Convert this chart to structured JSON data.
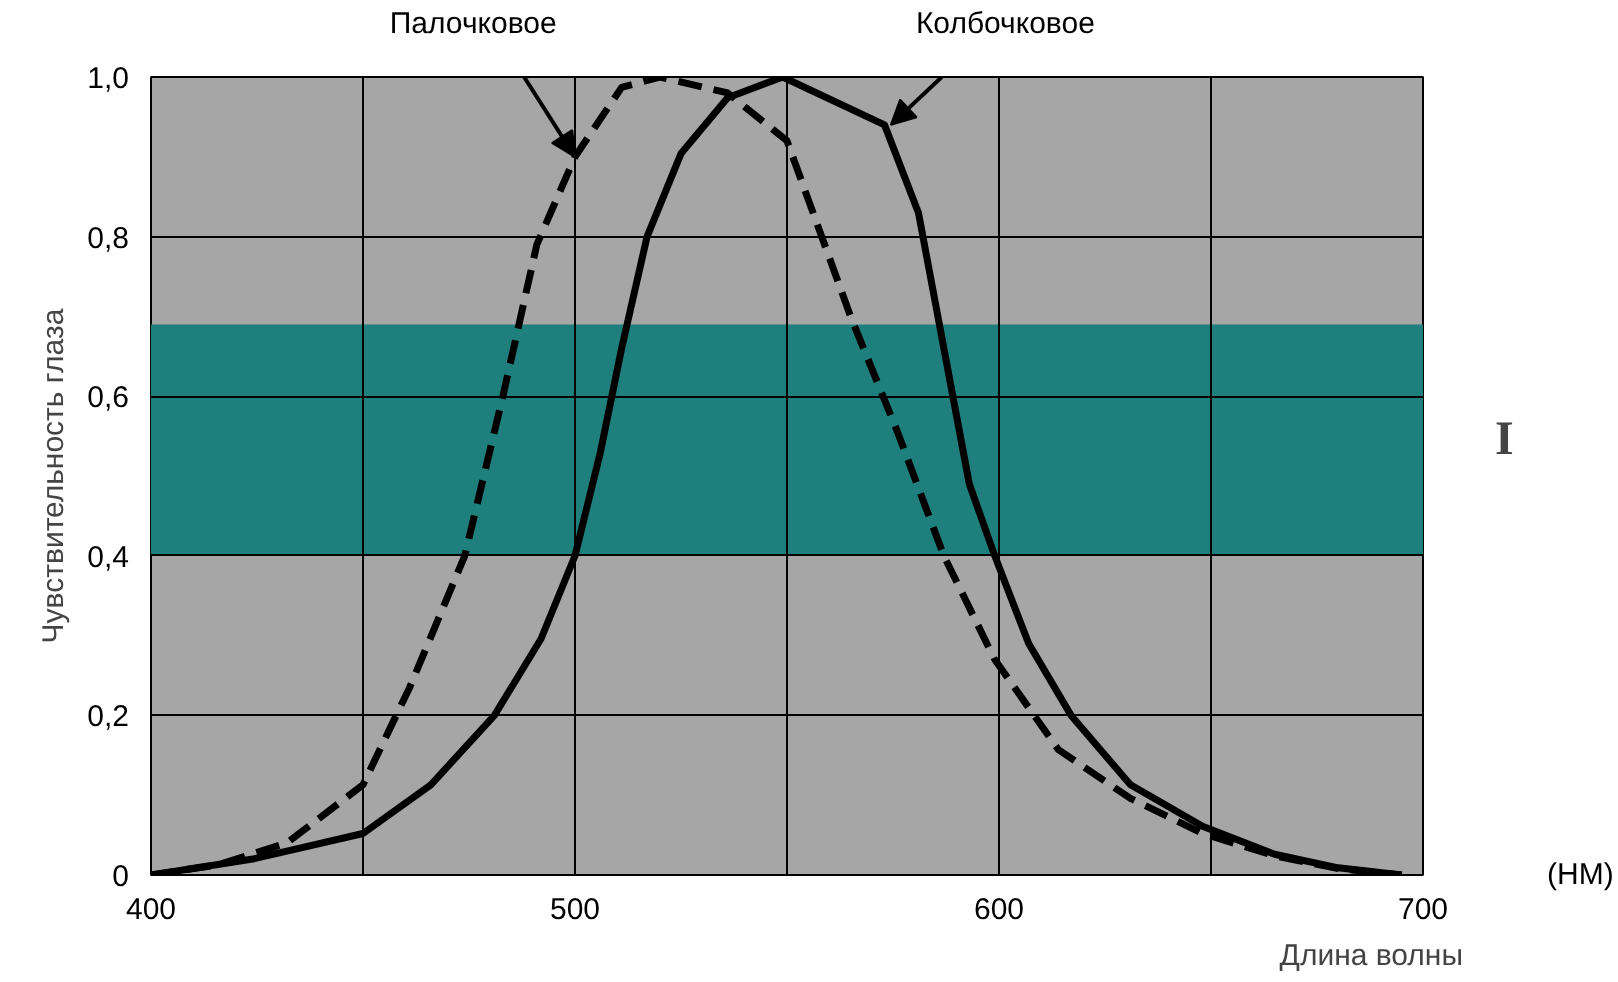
{
  "chart_data": {
    "type": "line",
    "xlabel": "Длина волны",
    "ylabel": "Чувствительность глаза",
    "xlim": [
      400,
      700
    ],
    "ylim": [
      0,
      1.0
    ],
    "xticks": [
      400,
      {
        "value": 450,
        "label": null
      },
      500,
      {
        "value": 550,
        "label": null
      },
      600,
      {
        "value": 650,
        "label": null
      },
      700
    ],
    "yticks": [
      0,
      {
        "value": 0.2,
        "label": "0,2"
      },
      {
        "value": 0.4,
        "label": "0,4"
      },
      {
        "value": 0.6,
        "label": "0,6"
      },
      {
        "value": 0.8,
        "label": "0,8"
      },
      {
        "value": 1.0,
        "label": "1,0"
      }
    ],
    "grid": true,
    "series": [
      {
        "color": "#000000",
        "line_style": "dashed",
        "x": [
          400,
          416,
          432,
          450,
          461,
          474,
          483,
          491,
          500,
          511,
          520,
          536,
          550,
          565,
          576,
          587,
          599,
          614,
          631,
          648,
          665,
          680,
          695
        ],
        "values": [
          0,
          0.013,
          0.04,
          0.113,
          0.235,
          0.4,
          0.6,
          0.79,
          0.9,
          0.987,
          1.0,
          0.98,
          0.92,
          0.7,
          0.556,
          0.4,
          0.27,
          0.157,
          0.096,
          0.052,
          0.024,
          0.008,
          0
        ]
      },
      {
        "color": "#000000",
        "line_style": "solid",
        "x": [
          400,
          424,
          450,
          466,
          481,
          492,
          500,
          506,
          511,
          517,
          525,
          536,
          549,
          573,
          581,
          587,
          593,
          599,
          607,
          617,
          631,
          648,
          665,
          680,
          695
        ],
        "values": [
          0,
          0.02,
          0.052,
          0.113,
          0.2,
          0.296,
          0.4,
          0.53,
          0.66,
          0.8,
          0.904,
          0.974,
          1.0,
          0.94,
          0.83,
          0.66,
          0.49,
          0.4,
          0.29,
          0.2,
          0.113,
          0.061,
          0.026,
          0.009,
          0
        ]
      }
    ],
    "bands": [
      {
        "axis": "y",
        "from": 0.4,
        "to": 0.69,
        "label": "I",
        "color": "#1f7f7c"
      }
    ],
    "annotations": [
      {
        "text": "Палочковое",
        "x": 500,
        "y": 0.9
      },
      {
        "text": "Колбочковое",
        "x": 574.5,
        "y": 0.94
      },
      "(НМ)"
    ]
  }
}
